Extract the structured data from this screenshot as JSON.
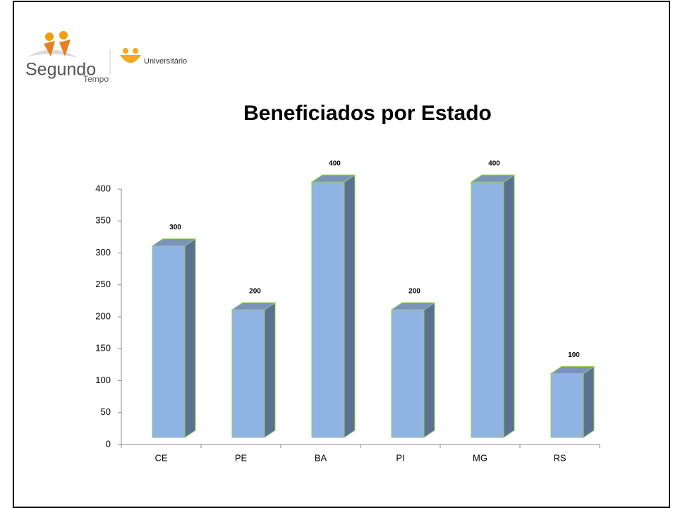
{
  "logo": {
    "name": "Segundo",
    "subname": "Tempo",
    "program": "Universitário"
  },
  "chart_data": {
    "type": "bar3d",
    "title": "Beneficiados por Estado",
    "categories": [
      "CE",
      "PE",
      "BA",
      "PI",
      "MG",
      "RS"
    ],
    "values": [
      300,
      200,
      400,
      200,
      400,
      100
    ],
    "color": "#8fb4e3",
    "ylim": [
      0,
      400
    ],
    "yticks": [
      0,
      50,
      100,
      150,
      200,
      250,
      300,
      350,
      400
    ]
  }
}
